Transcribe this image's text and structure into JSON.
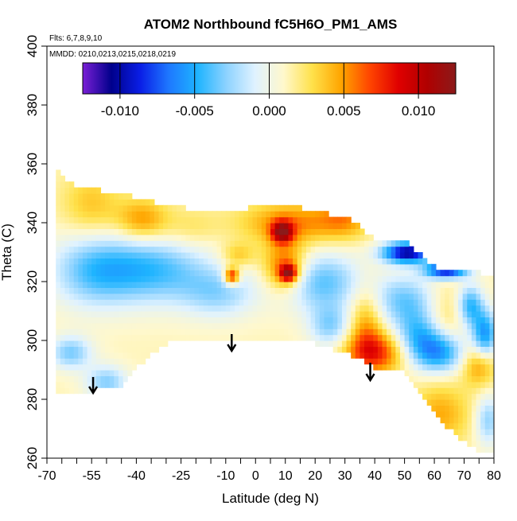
{
  "chart_data": {
    "type": "heatmap",
    "title": "ATOM2 Northbound fC5H6O_PM1_AMS",
    "flights_note": "Flts: 6,7,8,9,10",
    "dates_note": "MMDD: 0210,0213,0215,0218,0219",
    "xlabel": "Latitude (deg N)",
    "ylabel": "Theta (C)",
    "xlim": [
      -70,
      80
    ],
    "ylim": [
      260,
      400
    ],
    "x_ticks": [
      -70,
      -55,
      -40,
      -25,
      -10,
      0,
      10,
      20,
      30,
      40,
      50,
      60,
      70,
      80
    ],
    "x_minor_ticks": [
      -65,
      -60,
      -50,
      -45,
      -35,
      -30,
      -20,
      -15,
      -5,
      5,
      15,
      25,
      35,
      45,
      55,
      65,
      75
    ],
    "y_ticks": [
      260,
      280,
      300,
      320,
      340,
      360,
      380,
      400
    ],
    "colorbar": {
      "ticks": [
        -0.01,
        -0.005,
        0.0,
        0.005,
        0.01
      ],
      "tick_labels": [
        "-0.010",
        "-0.005",
        "0.000",
        "0.005",
        "0.010"
      ],
      "range": [
        -0.0125,
        0.0125
      ],
      "colors": [
        "#7a1fd6",
        "#00008b",
        "#0a1ee6",
        "#1e78ff",
        "#1eb4ff",
        "#8cd2ff",
        "#dff2ff",
        "#fff8cc",
        "#ffe14a",
        "#ffa500",
        "#ff4500",
        "#e00000",
        "#b00000",
        "#8b1a1a"
      ]
    },
    "arrows_latitude": [
      -54.5,
      -8,
      38.5
    ],
    "field": {
      "background_value": 0.0012,
      "domain_outline": [
        [
          -67,
          358
        ],
        [
          -60,
          352
        ],
        [
          -45,
          350
        ],
        [
          -30,
          346
        ],
        [
          -10,
          343
        ],
        [
          5,
          347
        ],
        [
          20,
          344
        ],
        [
          30,
          342
        ],
        [
          40,
          335
        ],
        [
          50,
          334
        ],
        [
          60,
          325
        ],
        [
          70,
          324
        ],
        [
          80,
          322
        ],
        [
          80,
          262
        ],
        [
          75,
          262
        ],
        [
          62,
          272
        ],
        [
          50,
          290
        ],
        [
          40,
          291
        ],
        [
          30,
          296
        ],
        [
          20,
          299
        ],
        [
          10,
          300
        ],
        [
          0,
          301
        ],
        [
          -10,
          300
        ],
        [
          -25,
          301
        ],
        [
          -35,
          296
        ],
        [
          -45,
          285
        ],
        [
          -55,
          283
        ],
        [
          -65,
          282
        ],
        [
          -67,
          282
        ]
      ],
      "features": [
        {
          "lat": -55,
          "theta": 346,
          "value": 0.0038,
          "rlat": 7,
          "rtheta": 8
        },
        {
          "lat": -38,
          "theta": 341,
          "value": 0.0052,
          "rlat": 6,
          "rtheta": 5
        },
        {
          "lat": -22,
          "theta": 338,
          "value": 0.0028,
          "rlat": 7,
          "rtheta": 5
        },
        {
          "lat": 12,
          "theta": 340,
          "value": 0.0055,
          "rlat": 12,
          "rtheta": 5
        },
        {
          "lat": 9,
          "theta": 337,
          "value": 0.0098,
          "rlat": 2.5,
          "rtheta": 2.5
        },
        {
          "lat": 30,
          "theta": 342,
          "value": 0.0045,
          "rlat": 6,
          "rtheta": 5
        },
        {
          "lat": 10,
          "theta": 325,
          "value": 0.0072,
          "rlat": 5,
          "rtheta": 6
        },
        {
          "lat": 11,
          "theta": 323,
          "value": 0.0098,
          "rlat": 2,
          "rtheta": 2
        },
        {
          "lat": -8,
          "theta": 322,
          "value": 0.0095,
          "rlat": 1.8,
          "rtheta": 2
        },
        {
          "lat": -6,
          "theta": 329,
          "value": 0.004,
          "rlat": 4,
          "rtheta": 3
        },
        {
          "lat": 37,
          "theta": 307,
          "value": 0.0048,
          "rlat": 4,
          "rtheta": 9
        },
        {
          "lat": 40,
          "theta": 296,
          "value": 0.0075,
          "rlat": 7,
          "rtheta": 5
        },
        {
          "lat": 63,
          "theta": 305,
          "value": 0.0038,
          "rlat": 5,
          "rtheta": 10
        },
        {
          "lat": 75,
          "theta": 292,
          "value": 0.0055,
          "rlat": 4,
          "rtheta": 5
        },
        {
          "lat": 62,
          "theta": 275,
          "value": 0.0045,
          "rlat": 7,
          "rtheta": 7
        },
        {
          "lat": -55,
          "theta": 324,
          "value": -0.0028,
          "rlat": 10,
          "rtheta": 9
        },
        {
          "lat": -35,
          "theta": 324,
          "value": -0.0042,
          "rlat": 14,
          "rtheta": 8
        },
        {
          "lat": -12,
          "theta": 316,
          "value": -0.0022,
          "rlat": 9,
          "rtheta": 6
        },
        {
          "lat": -62,
          "theta": 296,
          "value": -0.0032,
          "rlat": 5,
          "rtheta": 4
        },
        {
          "lat": -50,
          "theta": 286,
          "value": -0.003,
          "rlat": 5,
          "rtheta": 4
        },
        {
          "lat": 22,
          "theta": 320,
          "value": -0.0038,
          "rlat": 10,
          "rtheta": 7
        },
        {
          "lat": 25,
          "theta": 305,
          "value": -0.0028,
          "rlat": 5,
          "rtheta": 5
        },
        {
          "lat": 51,
          "theta": 330,
          "value": -0.0105,
          "rlat": 6,
          "rtheta": 2.5
        },
        {
          "lat": 64,
          "theta": 324,
          "value": -0.0095,
          "rlat": 5,
          "rtheta": 2
        },
        {
          "lat": 50,
          "theta": 314,
          "value": -0.0032,
          "rlat": 8,
          "rtheta": 6
        },
        {
          "lat": 62,
          "theta": 296,
          "value": -0.0062,
          "rlat": 6,
          "rtheta": 5
        },
        {
          "lat": 55,
          "theta": 302,
          "value": -0.004,
          "rlat": 6,
          "rtheta": 6
        },
        {
          "lat": 77,
          "theta": 302,
          "value": -0.0058,
          "rlat": 3,
          "rtheta": 6
        },
        {
          "lat": 72,
          "theta": 312,
          "value": -0.0045,
          "rlat": 3,
          "rtheta": 5
        },
        {
          "lat": 78,
          "theta": 273,
          "value": -0.0028,
          "rlat": 3,
          "rtheta": 6
        }
      ]
    }
  }
}
